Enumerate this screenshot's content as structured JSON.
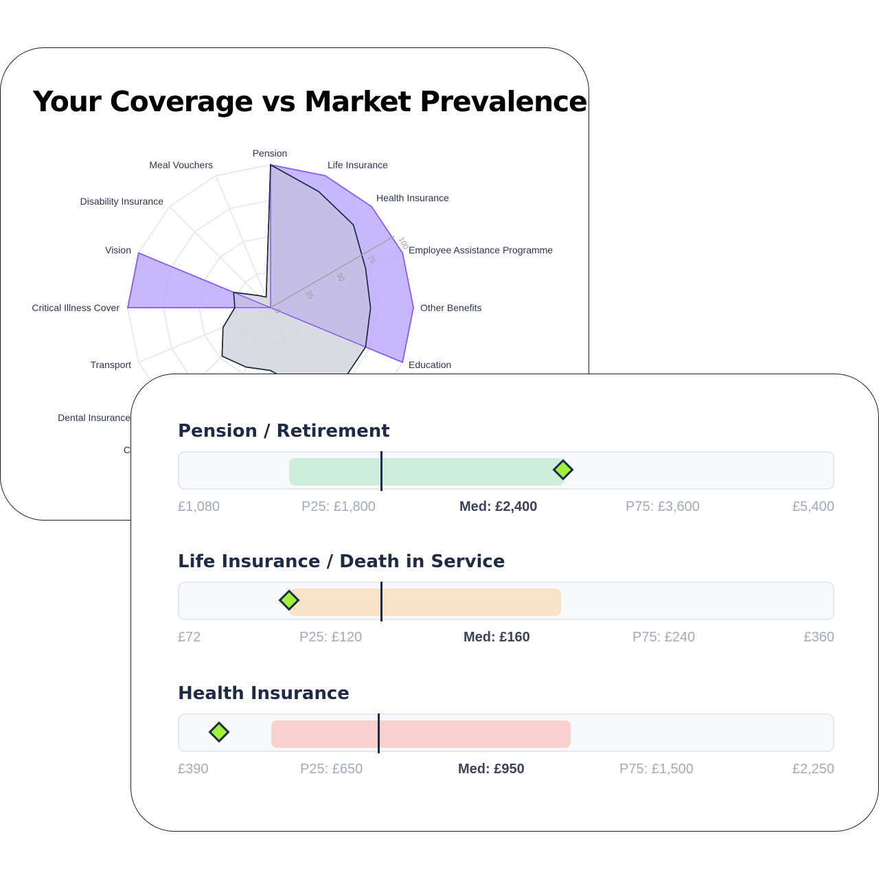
{
  "radar_card": {
    "title": "Your Coverage vs Market Prevalence"
  },
  "bench_card": {
    "rows": [
      {
        "title": "Pension / Retirement",
        "min": "£1,080",
        "p25": "P25: £1,800",
        "median": "Med: £2,400",
        "p75": "P75: £3,600",
        "max": "£5,400",
        "range_color": "#cdeedd"
      },
      {
        "title": "Life Insurance / Death in Service",
        "min": "£72",
        "p25": "P25: £120",
        "median": "Med: £160",
        "p75": "P75: £240",
        "max": "£360",
        "range_color": "#fae3c9"
      },
      {
        "title": "Health Insurance",
        "min": "£390",
        "p25": "P25: £650",
        "median": "Med: £950",
        "p75": "P75: £1,500",
        "max": "£2,250",
        "range_color": "#f9d0d0"
      }
    ]
  },
  "chart_data": [
    {
      "type": "radar",
      "title": "Your Coverage vs Market Prevalence",
      "categories": [
        "Pension",
        "Life Insurance",
        "Health Insurance",
        "Employee Assistance Programme",
        "Other Benefits",
        "Education",
        "",
        "",
        "",
        "",
        "Dental Insurance",
        "Transport",
        "Critical Illness Cover",
        "Vision",
        "Disability Insurance",
        "Meal Vouchers"
      ],
      "visible_partial_labels": [
        "Dental Ins",
        "C"
      ],
      "radial_ticks": [
        0,
        25,
        50,
        75,
        100
      ],
      "rlim": [
        0,
        100
      ],
      "series": [
        {
          "name": "Market Prevalence",
          "color": "#8b5cf6",
          "fill": "#c4b5fd",
          "values": [
            100,
            100,
            100,
            100,
            100,
            100,
            0,
            0,
            0,
            0,
            0,
            0,
            100,
            100,
            0,
            0
          ]
        },
        {
          "name": "Your Coverage",
          "color": "#1f2a44",
          "fill": "#d1d5db",
          "values": [
            100,
            88,
            82,
            72,
            70,
            72,
            72,
            62,
            44,
            45,
            48,
            36,
            25,
            28,
            12,
            8
          ]
        }
      ]
    },
    {
      "type": "range_benchmark",
      "title": "Pension / Retirement",
      "axis_min": 1080,
      "p25": 1800,
      "median": 2400,
      "p75": 3600,
      "axis_max": 5400,
      "your_value_position_pct": 58.5,
      "range_color": "#cdeedd"
    },
    {
      "type": "range_benchmark",
      "title": "Life Insurance / Death in Service",
      "axis_min": 72,
      "p25": 120,
      "median": 160,
      "p75": 240,
      "axis_max": 360,
      "your_value_position_pct": 16.8,
      "range_color": "#fae3c9"
    },
    {
      "type": "range_benchmark",
      "title": "Health Insurance",
      "axis_min": 390,
      "p25": 650,
      "median": 950,
      "p75": 1500,
      "axis_max": 2250,
      "your_value_position_pct": 6.1,
      "range_color": "#f9d0d0"
    }
  ]
}
